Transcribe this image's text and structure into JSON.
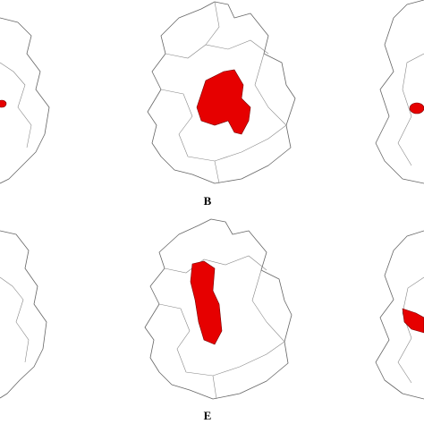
{
  "panels": [
    {
      "label": "B"
    },
    {
      "label": "E"
    }
  ]
}
